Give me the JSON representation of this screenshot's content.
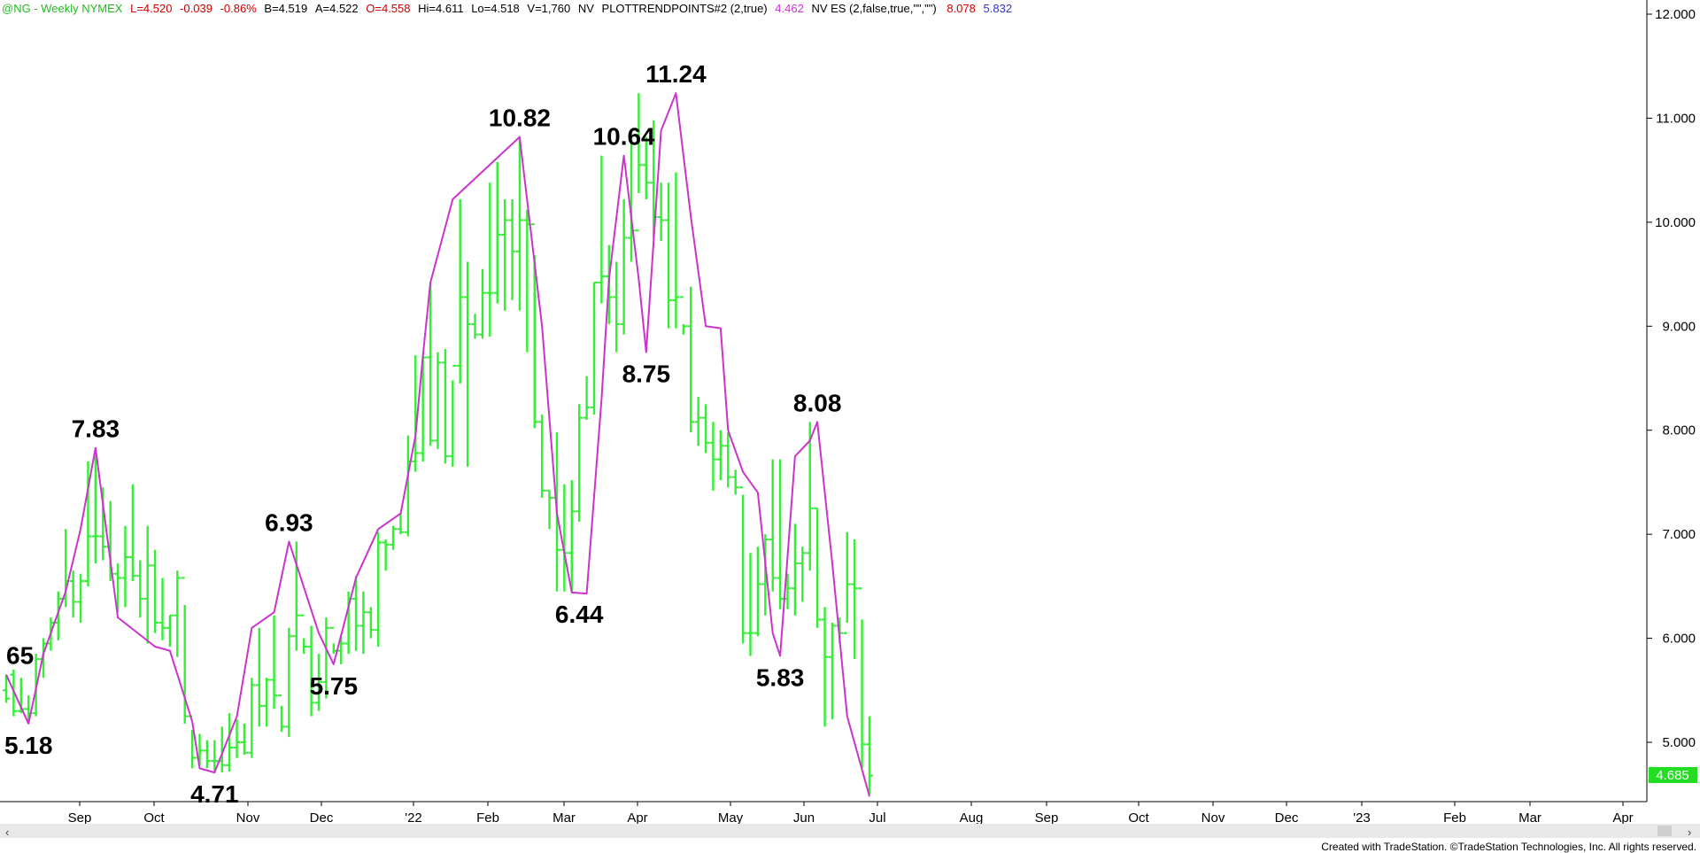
{
  "header": {
    "symbol": "@NG - Weekly  NYMEX",
    "last": "L=4.520",
    "change": "-0.039",
    "change_pct": "-0.86%",
    "bid": "B=4.519",
    "ask": "A=4.522",
    "open": "O=4.558",
    "high": "Hi=4.611",
    "low": "Lo=4.518",
    "volume": "V=1,760",
    "nv": "NV",
    "study": "PLOTTRENDPOINTS#2 (2,true)",
    "study_value": "4.462",
    "nv_es": "NV ES (2,false,true,\"\",\"\")",
    "val1": "8.078",
    "val2": "5.832"
  },
  "footer": "Created with TradeStation. ©TradeStation Technologies, Inc. All rights reserved.",
  "last_price_label": "4.685",
  "colors": {
    "bars": "#33ee33",
    "trend": "#cc33cc",
    "header_green": "#22bb22",
    "header_red": "#cc0000",
    "header_magenta": "#cc33cc",
    "header_blue": "#3333cc",
    "last_box": "#22dd22",
    "scroll": "#e8e8e8"
  },
  "chart_data": {
    "type": "ohlc_bar",
    "y_ticks": [
      "5.000",
      "6.000",
      "7.000",
      "8.000",
      "9.000",
      "10.000",
      "11.000",
      "12.000"
    ],
    "ylim": [
      4.0,
      12.1
    ],
    "x_labels": [
      "Sep",
      "Oct",
      "Nov",
      "Dec",
      "'22",
      "Feb",
      "Mar",
      "Apr",
      "May",
      "Jun",
      "Jul",
      "Aug",
      "Sep",
      "Oct",
      "Nov",
      "Dec",
      "'23",
      "Feb",
      "Mar",
      "Apr"
    ],
    "bars": [
      [
        5.5,
        5.65,
        5.38,
        5.42
      ],
      [
        5.65,
        5.7,
        5.25,
        5.3
      ],
      [
        5.3,
        5.62,
        5.28,
        5.32
      ],
      [
        5.32,
        5.45,
        5.18,
        5.28
      ],
      [
        5.28,
        5.85,
        5.25,
        5.8
      ],
      [
        5.8,
        6.0,
        5.62,
        5.95
      ],
      [
        5.95,
        6.2,
        5.88,
        6.15
      ],
      [
        6.15,
        6.45,
        5.98,
        6.38
      ],
      [
        6.38,
        7.05,
        6.3,
        6.55
      ],
      [
        6.55,
        6.65,
        6.2,
        6.35
      ],
      [
        6.35,
        6.62,
        6.15,
        6.55
      ],
      [
        6.55,
        7.7,
        6.5,
        6.98
      ],
      [
        6.98,
        7.83,
        6.72,
        6.98
      ],
      [
        6.98,
        7.45,
        6.75,
        6.88
      ],
      [
        6.88,
        7.32,
        6.55,
        6.62
      ],
      [
        6.62,
        6.72,
        6.25,
        6.58
      ],
      [
        6.58,
        7.08,
        6.3,
        6.78
      ],
      [
        6.78,
        7.48,
        6.55,
        6.6
      ],
      [
        6.6,
        6.75,
        6.2,
        6.38
      ],
      [
        6.38,
        7.08,
        5.95,
        6.7
      ],
      [
        6.7,
        6.85,
        6.05,
        6.15
      ],
      [
        6.15,
        6.58,
        5.98,
        6.1
      ],
      [
        6.1,
        6.22,
        5.92,
        6.22
      ],
      [
        6.22,
        6.65,
        5.82,
        6.58
      ],
      [
        6.58,
        6.32,
        5.18,
        5.25
      ],
      [
        5.25,
        5.12,
        4.75,
        4.85
      ],
      [
        4.85,
        5.08,
        4.78,
        4.92
      ],
      [
        4.92,
        5.02,
        4.75,
        4.82
      ],
      [
        4.82,
        5.02,
        4.72,
        4.82
      ],
      [
        4.82,
        5.15,
        4.71,
        4.78
      ],
      [
        4.78,
        5.28,
        4.72,
        4.95
      ],
      [
        4.95,
        5.22,
        4.85,
        5.0
      ],
      [
        5.0,
        5.18,
        4.88,
        4.9
      ],
      [
        4.9,
        5.62,
        4.85,
        5.55
      ],
      [
        5.55,
        6.1,
        5.15,
        5.35
      ],
      [
        5.35,
        5.62,
        5.15,
        5.6
      ],
      [
        5.6,
        6.22,
        5.32,
        5.45
      ],
      [
        5.45,
        5.35,
        5.1,
        5.15
      ],
      [
        5.15,
        6.1,
        5.05,
        6.02
      ],
      [
        6.02,
        6.93,
        5.88,
        6.22
      ],
      [
        6.22,
        6.0,
        5.85,
        5.92
      ],
      [
        5.92,
        6.12,
        5.25,
        5.38
      ],
      [
        5.38,
        5.85,
        5.3,
        5.58
      ],
      [
        5.58,
        6.2,
        5.42,
        6.1
      ],
      [
        6.1,
        5.95,
        5.85,
        5.88
      ],
      [
        5.88,
        6.02,
        5.75,
        5.95
      ],
      [
        5.95,
        6.45,
        5.85,
        6.38
      ],
      [
        6.38,
        6.6,
        5.88,
        6.12
      ],
      [
        6.12,
        6.45,
        5.85,
        6.25
      ],
      [
        6.25,
        6.3,
        6.0,
        6.08
      ],
      [
        6.08,
        7.02,
        5.92,
        6.92
      ],
      [
        6.92,
        6.95,
        6.65,
        6.9
      ],
      [
        6.9,
        7.08,
        6.85,
        7.05
      ],
      [
        7.05,
        7.2,
        7.0,
        7.02
      ],
      [
        7.02,
        7.95,
        6.98,
        7.7
      ],
      [
        7.7,
        8.72,
        7.6,
        7.78
      ],
      [
        7.78,
        8.72,
        7.7,
        8.7
      ],
      [
        8.7,
        9.42,
        7.85,
        7.9
      ],
      [
        7.9,
        8.75,
        7.82,
        8.65
      ],
      [
        8.65,
        8.78,
        7.68,
        7.75
      ],
      [
        7.75,
        8.48,
        7.65,
        8.62
      ],
      [
        8.62,
        10.22,
        8.45,
        9.28
      ],
      [
        9.28,
        9.62,
        7.65,
        9.02
      ],
      [
        9.02,
        9.12,
        8.88,
        8.92
      ],
      [
        8.92,
        9.55,
        8.88,
        9.32
      ],
      [
        9.32,
        10.38,
        8.9,
        9.32
      ],
      [
        9.32,
        10.58,
        9.22,
        9.88
      ],
      [
        9.88,
        10.22,
        9.15,
        10.02
      ],
      [
        10.02,
        10.22,
        9.25,
        9.72
      ],
      [
        9.72,
        10.82,
        9.15,
        10.02
      ],
      [
        10.02,
        10.12,
        8.75,
        9.98
      ],
      [
        9.98,
        9.68,
        8.02,
        8.08
      ],
      [
        8.08,
        8.15,
        7.35,
        7.42
      ],
      [
        7.42,
        7.42,
        7.05,
        7.35
      ],
      [
        7.35,
        7.98,
        6.45,
        6.85
      ],
      [
        6.85,
        7.48,
        6.45,
        6.82
      ],
      [
        6.82,
        7.52,
        6.44,
        7.22
      ],
      [
        7.22,
        8.25,
        7.12,
        8.12
      ],
      [
        8.12,
        8.52,
        8.1,
        8.22
      ],
      [
        8.22,
        9.42,
        8.15,
        9.42
      ],
      [
        9.42,
        10.64,
        9.22,
        9.48
      ],
      [
        9.48,
        9.78,
        9.02,
        9.28
      ],
      [
        9.28,
        9.62,
        8.75,
        9.02
      ],
      [
        9.02,
        10.22,
        8.92,
        9.85
      ],
      [
        9.85,
        10.88,
        9.62,
        9.92
      ],
      [
        9.92,
        11.24,
        10.28,
        10.55
      ],
      [
        10.55,
        10.82,
        10.22,
        10.38
      ],
      [
        10.38,
        10.98,
        9.85,
        10.05
      ],
      [
        10.05,
        10.38,
        9.82,
        10.02
      ],
      [
        10.02,
        10.38,
        8.98,
        9.25
      ],
      [
        9.25,
        10.48,
        8.98,
        9.28
      ],
      [
        9.28,
        9.02,
        8.92,
        9.0
      ],
      [
        9.0,
        9.38,
        7.98,
        8.08
      ],
      [
        8.08,
        8.32,
        7.85,
        8.12
      ],
      [
        8.12,
        8.25,
        7.78,
        7.88
      ],
      [
        7.88,
        8.08,
        7.42,
        7.72
      ],
      [
        7.72,
        8.0,
        7.52,
        7.85
      ],
      [
        7.85,
        7.98,
        7.45,
        7.55
      ],
      [
        7.55,
        7.62,
        7.38,
        7.45
      ],
      [
        7.45,
        7.38,
        5.95,
        6.05
      ],
      [
        6.05,
        6.82,
        5.83,
        6.05
      ],
      [
        6.05,
        6.88,
        6.02,
        6.52
      ],
      [
        6.52,
        7.0,
        6.22,
        6.95
      ],
      [
        6.95,
        7.72,
        6.45,
        6.58
      ],
      [
        6.58,
        7.72,
        6.28,
        6.38
      ],
      [
        6.38,
        6.62,
        6.28,
        6.48
      ],
      [
        6.48,
        7.1,
        6.22,
        6.72
      ],
      [
        6.72,
        6.88,
        6.35,
        6.82
      ],
      [
        6.82,
        8.08,
        6.65,
        7.25
      ],
      [
        7.25,
        7.25,
        6.1,
        6.18
      ],
      [
        6.18,
        6.3,
        5.15,
        5.82
      ],
      [
        5.82,
        6.15,
        5.22,
        6.12
      ],
      [
        6.12,
        6.2,
        5.95,
        6.05
      ],
      [
        6.05,
        7.02,
        6.15,
        6.52
      ],
      [
        6.52,
        6.95,
        5.8,
        6.48
      ],
      [
        6.48,
        6.18,
        4.75,
        4.98
      ],
      [
        4.98,
        5.25,
        4.5,
        4.68
      ]
    ],
    "trend_points": [
      [
        0,
        5.65
      ],
      [
        3,
        5.18
      ],
      [
        5,
        5.85
      ],
      [
        8,
        6.45
      ],
      [
        10,
        7.05
      ],
      [
        12,
        7.83
      ],
      [
        15,
        6.2
      ],
      [
        20,
        5.92
      ],
      [
        22,
        5.88
      ],
      [
        25,
        5.2
      ],
      [
        26,
        4.75
      ],
      [
        28,
        4.71
      ],
      [
        31,
        5.25
      ],
      [
        33,
        6.1
      ],
      [
        36,
        6.25
      ],
      [
        38,
        6.93
      ],
      [
        42,
        6.05
      ],
      [
        44,
        5.75
      ],
      [
        47,
        6.58
      ],
      [
        50,
        7.05
      ],
      [
        53,
        7.2
      ],
      [
        55,
        7.95
      ],
      [
        56,
        8.72
      ],
      [
        57,
        9.42
      ],
      [
        60,
        10.22
      ],
      [
        69,
        10.82
      ],
      [
        72,
        9.0
      ],
      [
        74,
        7.2
      ],
      [
        76,
        6.44
      ],
      [
        78,
        6.43
      ],
      [
        80,
        8.3
      ],
      [
        81,
        9.45
      ],
      [
        83,
        10.64
      ],
      [
        85,
        9.45
      ],
      [
        86,
        8.75
      ],
      [
        88,
        10.88
      ],
      [
        90,
        11.24
      ],
      [
        92,
        10.05
      ],
      [
        94,
        9.0
      ],
      [
        96,
        8.98
      ],
      [
        97,
        8.0
      ],
      [
        99,
        7.6
      ],
      [
        101,
        7.4
      ],
      [
        103,
        6.05
      ],
      [
        104,
        5.83
      ],
      [
        106,
        7.75
      ],
      [
        108,
        7.9
      ],
      [
        109,
        8.08
      ],
      [
        111,
        6.72
      ],
      [
        113,
        5.25
      ],
      [
        116,
        4.48
      ]
    ],
    "pivot_labels": [
      {
        "i": 0,
        "v": 5.65,
        "text": "65",
        "pos": "above"
      },
      {
        "i": 3,
        "v": 5.18,
        "text": "5.18",
        "pos": "below"
      },
      {
        "i": 12,
        "v": 7.83,
        "text": "7.83",
        "pos": "above"
      },
      {
        "i": 28,
        "v": 4.71,
        "text": "4.71",
        "pos": "below"
      },
      {
        "i": 38,
        "v": 6.93,
        "text": "6.93",
        "pos": "above"
      },
      {
        "i": 44,
        "v": 5.75,
        "text": "5.75",
        "pos": "below"
      },
      {
        "i": 69,
        "v": 10.82,
        "text": "10.82",
        "pos": "above"
      },
      {
        "i": 77,
        "v": 6.44,
        "text": "6.44",
        "pos": "below"
      },
      {
        "i": 83,
        "v": 10.64,
        "text": "10.64",
        "pos": "above"
      },
      {
        "i": 86,
        "v": 8.75,
        "text": "8.75",
        "pos": "below"
      },
      {
        "i": 90,
        "v": 11.24,
        "text": "11.24",
        "pos": "above"
      },
      {
        "i": 104,
        "v": 5.83,
        "text": "5.83",
        "pos": "below"
      },
      {
        "i": 109,
        "v": 8.08,
        "text": "8.08",
        "pos": "above"
      }
    ],
    "last_price": 4.685
  }
}
